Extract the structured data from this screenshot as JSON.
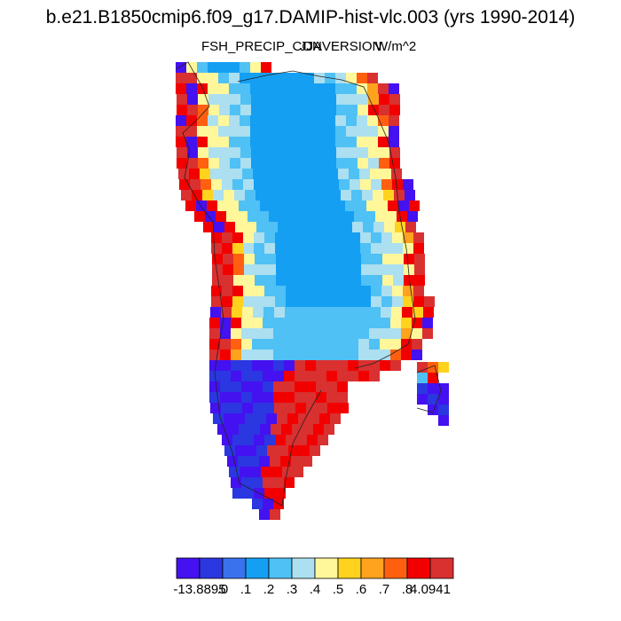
{
  "header": {
    "title": "b.e21.B1850cmip6.f09_g17.DAMIP-hist-vlc.003 (yrs 1990-2014)",
    "variable": "FSH_PRECIP_CONVERSION",
    "season": "JJA",
    "units": "W/m^2"
  },
  "colorbar": {
    "colors": [
      "#4411f0",
      "#2b37e0",
      "#3a72ee",
      "#159ff3",
      "#4fc1f5",
      "#acdff0",
      "#fff79a",
      "#ffd21e",
      "#ffa21d",
      "#ff5f0f",
      "#f20000",
      "#d93030"
    ],
    "labels": [
      "-13.8895",
      ".0",
      ".1",
      ".2",
      ".3",
      ".4",
      ".5",
      ".6",
      ".7",
      ".8",
      "4.0941"
    ]
  }
}
